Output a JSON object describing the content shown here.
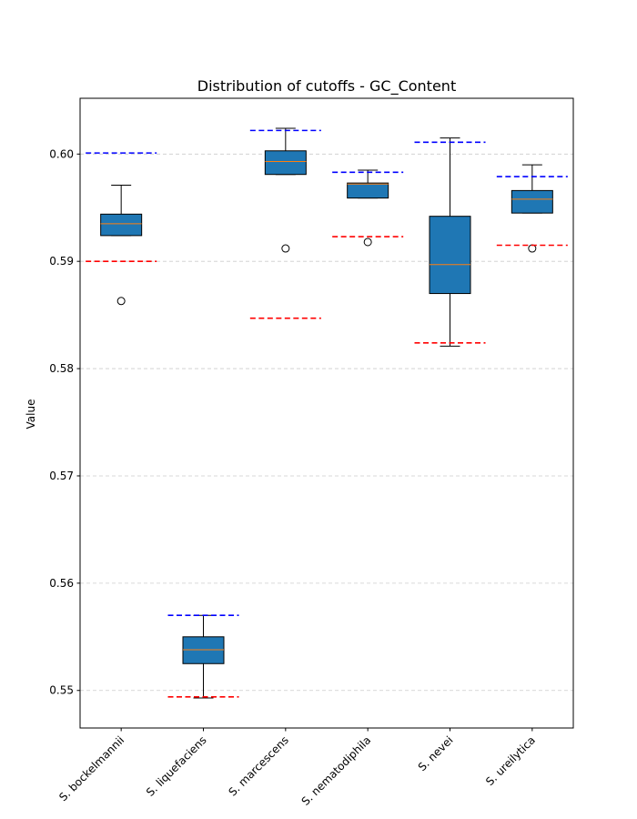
{
  "chart_data": {
    "type": "box",
    "title": "Distribution of cutoffs - GC_Content",
    "xlabel": "",
    "ylabel": "Value",
    "ylim": [
      0.5465,
      0.6052
    ],
    "yticks": [
      0.55,
      0.56,
      0.57,
      0.58,
      0.59,
      0.6
    ],
    "ytick_labels": [
      "0.55",
      "0.56",
      "0.57",
      "0.58",
      "0.59",
      "0.60"
    ],
    "grid": "horizontal dashed",
    "categories": [
      "S. bockelmannii",
      "S. liquefaciens",
      "S. marcescens",
      "S. nematodiphila",
      "S. nevei",
      "S. ureilytica"
    ],
    "boxes": [
      {
        "whisker_low": 0.5924,
        "q1": 0.5924,
        "median": 0.5935,
        "q3": 0.5944,
        "whisker_high": 0.5971,
        "outliers": [
          0.5863
        ]
      },
      {
        "whisker_low": 0.5493,
        "q1": 0.5525,
        "median": 0.5538,
        "q3": 0.555,
        "whisker_high": 0.557,
        "outliers": []
      },
      {
        "whisker_low": 0.5981,
        "q1": 0.5981,
        "median": 0.5993,
        "q3": 0.6003,
        "whisker_high": 0.6024,
        "outliers": [
          0.5912
        ]
      },
      {
        "whisker_low": 0.5959,
        "q1": 0.5959,
        "median": 0.5972,
        "q3": 0.5973,
        "whisker_high": 0.5985,
        "outliers": [
          0.5918
        ]
      },
      {
        "whisker_low": 0.5821,
        "q1": 0.587,
        "median": 0.5897,
        "q3": 0.5942,
        "whisker_high": 0.6015,
        "outliers": []
      },
      {
        "whisker_low": 0.5945,
        "q1": 0.5945,
        "median": 0.5958,
        "q3": 0.5966,
        "whisker_high": 0.599,
        "outliers": [
          0.5912
        ]
      }
    ],
    "upper_cutoffs": [
      0.6001,
      0.557,
      0.6022,
      0.5983,
      0.6011,
      0.5979
    ],
    "lower_cutoffs": [
      0.59,
      0.5494,
      0.5847,
      0.5923,
      0.5824,
      0.5915
    ],
    "colors": {
      "box_fill": "#1f77b4",
      "median": "#ff7f0e",
      "upper_cutoff": "#0000ff",
      "lower_cutoff": "#ff0000",
      "grid": "#cccccc"
    }
  }
}
